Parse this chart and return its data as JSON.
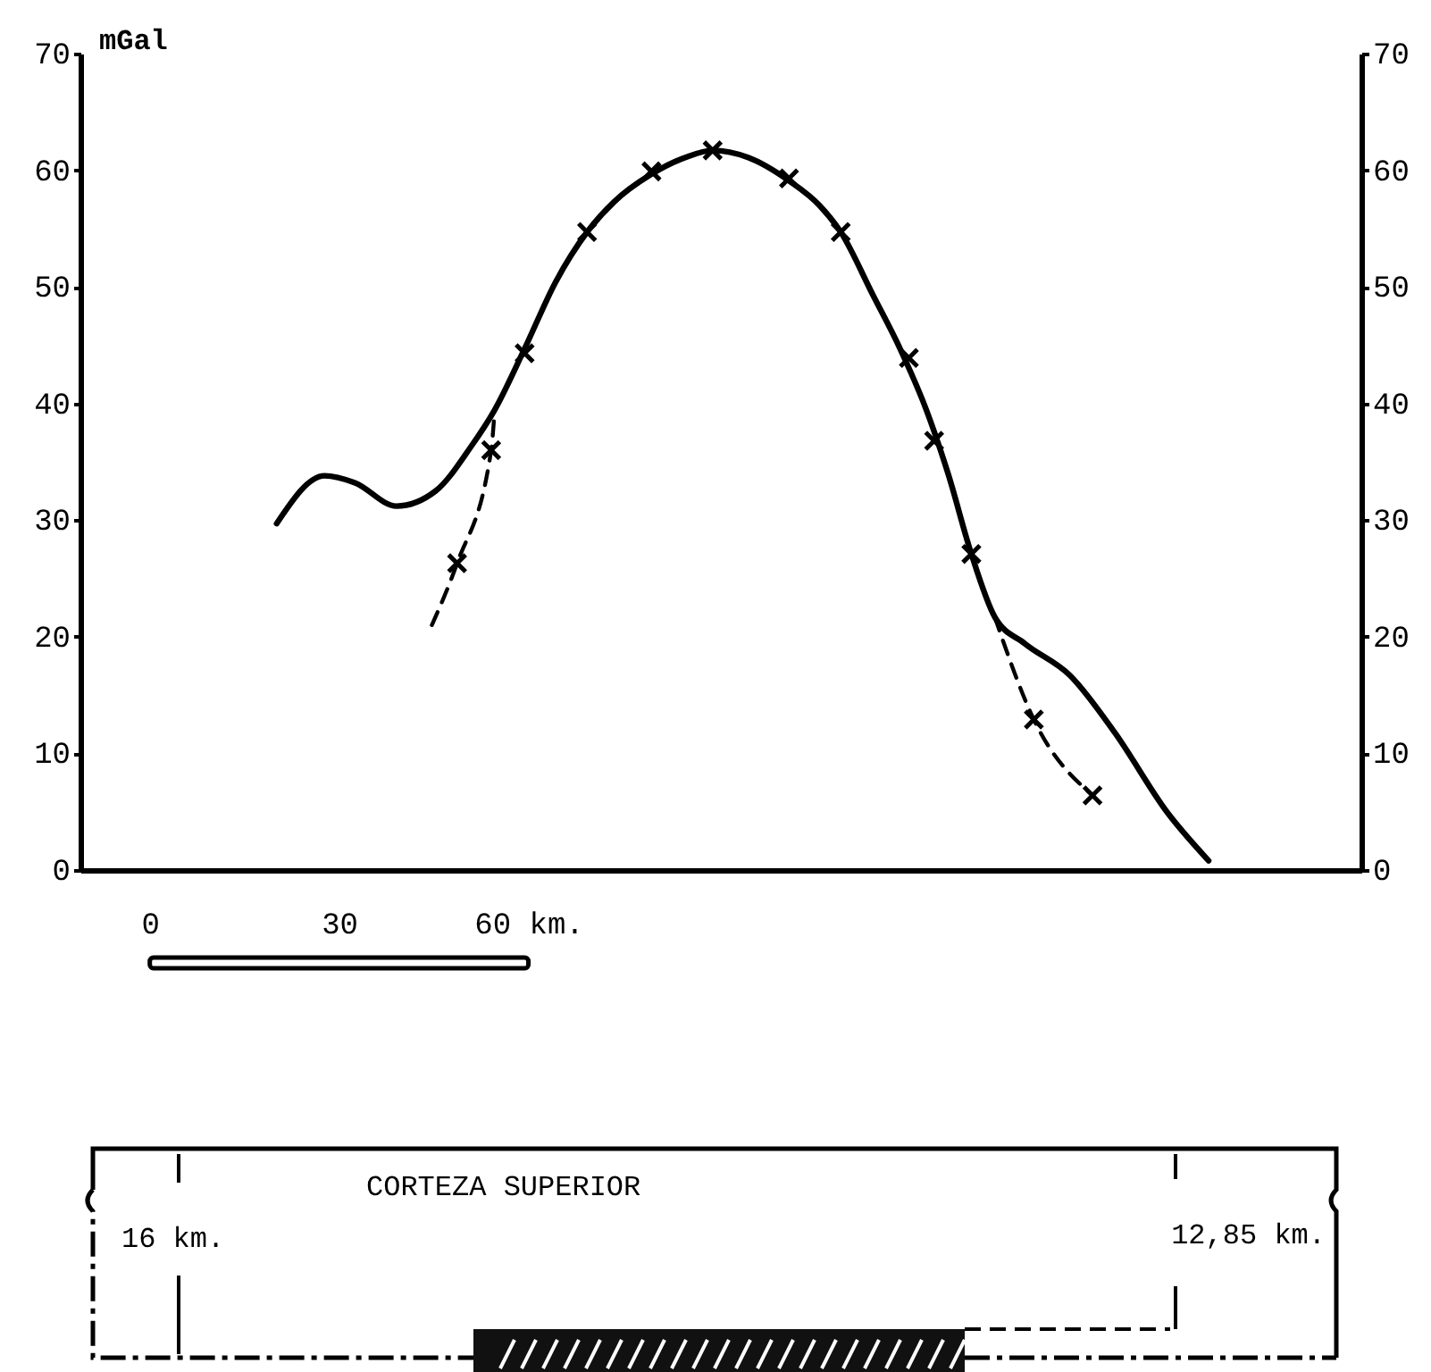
{
  "chart_data": {
    "type": "line",
    "ylabel": "mGal",
    "xlim": [
      -11,
      192
    ],
    "xticks": [
      0,
      30,
      {
        "value": 60,
        "label": "60 km."
      }
    ],
    "ylim": [
      0,
      70
    ],
    "yticks": [
      0,
      10,
      20,
      30,
      40,
      50,
      60,
      70
    ],
    "y2lim": [
      0,
      70
    ],
    "y2ticks": [
      0,
      10,
      20,
      30,
      40,
      50,
      60,
      70
    ],
    "annotations": [
      "CORTEZA SUPERIOR",
      "16 km.",
      "12,85 km."
    ],
    "series": [
      {
        "color": "#000000",
        "line_style": "solid",
        "x": [
          20.1,
          27.7,
          32.5,
          39.1,
          45.3,
          50.9,
          54.6,
          59.4,
          64.3,
          69.3,
          73.6,
          79.3,
          84.9,
          89.2,
          94.8,
          101.3,
          106.1,
          109.5,
          114.6,
          118.9,
          123.1,
          126.5,
          130.2,
          133.9,
          138.7,
          145.8,
          152.9,
          161.3,
          167.8
        ],
        "values": [
          29.7,
          33.8,
          33.2,
          31.2,
          32.5,
          36.3,
          39.4,
          44.7,
          50.4,
          54.7,
          57.3,
          59.6,
          61.1,
          61.7,
          61.1,
          59.1,
          57.0,
          54.7,
          49.3,
          44.7,
          39.4,
          34.0,
          27.1,
          21.7,
          19.4,
          16.7,
          11.8,
          4.9,
          0.8
        ]
      },
      {
        "color": "#000000",
        "line_style": "dashed",
        "x": [
          44.7,
          48.7,
          54.1,
          54.6
        ],
        "values": [
          21.0,
          26.3,
          36.0,
          39.0
        ]
      },
      {
        "color": "#000000",
        "line_style": "dashed",
        "x": [
          133.9,
          140.1,
          149.4
        ],
        "values": [
          21.7,
          12.9,
          6.4
        ]
      },
      {
        "type": "scatter",
        "color": "#000000",
        "marker": "cross",
        "x": [
          48.7,
          54.1,
          59.4,
          69.3,
          79.5,
          89.2,
          101.3,
          109.5,
          120.3,
          124.3,
          130.2,
          140.1,
          149.4
        ],
        "values": [
          26.3,
          36.0,
          44.3,
          54.7,
          59.9,
          61.7,
          59.3,
          54.7,
          43.9,
          36.8,
          27.1,
          12.9,
          6.4
        ]
      }
    ]
  }
}
